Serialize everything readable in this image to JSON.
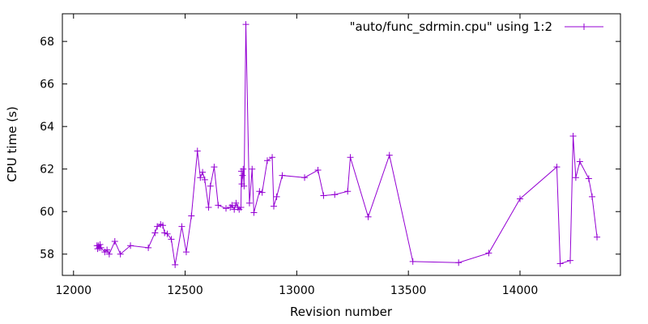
{
  "chart_data": {
    "type": "line",
    "xlabel": "Revision number",
    "ylabel": "CPU time (s)",
    "xlim": [
      11950,
      14450
    ],
    "ylim": [
      57,
      69.3
    ],
    "xticks": [
      12000,
      12500,
      13000,
      13500,
      14000
    ],
    "yticks": [
      58,
      60,
      62,
      64,
      66,
      68
    ],
    "xtick_labels": [
      "12000",
      "12500",
      "13000",
      "13500",
      "14000"
    ],
    "ytick_labels": [
      "58",
      "60",
      "62",
      "64",
      "66",
      "68"
    ],
    "grid": false,
    "legend_position": "top-right",
    "series": [
      {
        "name": "\"auto/func_sdrmin.cpu\" using 1:2",
        "color": "#9400d3",
        "marker": "plus",
        "points": [
          [
            12105,
            58.4
          ],
          [
            12108,
            58.25
          ],
          [
            12111,
            58.4
          ],
          [
            12115,
            58.3
          ],
          [
            12119,
            58.45
          ],
          [
            12123,
            58.3
          ],
          [
            12140,
            58.1
          ],
          [
            12150,
            58.2
          ],
          [
            12160,
            58.0
          ],
          [
            12185,
            58.6
          ],
          [
            12210,
            58.0
          ],
          [
            12255,
            58.4
          ],
          [
            12335,
            58.3
          ],
          [
            12365,
            59.0
          ],
          [
            12375,
            59.3
          ],
          [
            12390,
            59.4
          ],
          [
            12400,
            59.35
          ],
          [
            12408,
            59.0
          ],
          [
            12420,
            58.95
          ],
          [
            12438,
            58.7
          ],
          [
            12455,
            57.5
          ],
          [
            12485,
            59.3
          ],
          [
            12505,
            58.1
          ],
          [
            12528,
            59.8
          ],
          [
            12555,
            62.85
          ],
          [
            12568,
            61.6
          ],
          [
            12578,
            61.85
          ],
          [
            12588,
            61.5
          ],
          [
            12605,
            60.2
          ],
          [
            12613,
            61.2
          ],
          [
            12630,
            62.1
          ],
          [
            12648,
            60.3
          ],
          [
            12683,
            60.15
          ],
          [
            12702,
            60.2
          ],
          [
            12710,
            60.3
          ],
          [
            12720,
            60.1
          ],
          [
            12728,
            60.4
          ],
          [
            12736,
            60.2
          ],
          [
            12742,
            60.1
          ],
          [
            12750,
            60.2
          ],
          [
            12752,
            61.9
          ],
          [
            12754,
            61.3
          ],
          [
            12757,
            61.7
          ],
          [
            12760,
            62.0
          ],
          [
            12764,
            61.2
          ],
          [
            12772,
            68.8
          ],
          [
            12788,
            60.4
          ],
          [
            12800,
            62.0
          ],
          [
            12808,
            59.95
          ],
          [
            12833,
            60.95
          ],
          [
            12845,
            60.9
          ],
          [
            12868,
            62.4
          ],
          [
            12890,
            62.55
          ],
          [
            12897,
            60.25
          ],
          [
            12910,
            60.7
          ],
          [
            12935,
            61.7
          ],
          [
            13035,
            61.6
          ],
          [
            13095,
            61.95
          ],
          [
            13120,
            60.75
          ],
          [
            13170,
            60.8
          ],
          [
            13228,
            60.95
          ],
          [
            13240,
            62.55
          ],
          [
            13320,
            59.75
          ],
          [
            13415,
            62.65
          ],
          [
            13520,
            57.65
          ],
          [
            13725,
            57.6
          ],
          [
            13860,
            58.05
          ],
          [
            14000,
            60.6
          ],
          [
            14165,
            62.1
          ],
          [
            14180,
            57.55
          ],
          [
            14225,
            57.7
          ],
          [
            14238,
            63.55
          ],
          [
            14250,
            61.6
          ],
          [
            14268,
            62.35
          ],
          [
            14308,
            61.55
          ],
          [
            14323,
            60.7
          ],
          [
            14345,
            58.8
          ]
        ]
      }
    ]
  }
}
